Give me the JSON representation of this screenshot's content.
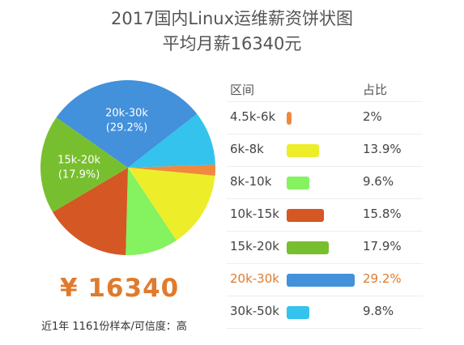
{
  "titles": {
    "line1": "2017国内Linux运维薪资饼状图",
    "line2": "平均月薪16340元"
  },
  "summary": {
    "salary": "¥ 16340",
    "footnote": "近1年 1161份样本/可信度：高"
  },
  "legend_header": {
    "range": "区间",
    "share": "占比"
  },
  "highlight_color": "#e07a2c",
  "chart_data": {
    "type": "pie",
    "title": "2017国内Linux运维薪资饼状图",
    "subtitle": "平均月薪16340元",
    "categories": [
      "4.5k-6k",
      "6k-8k",
      "8k-10k",
      "10k-15k",
      "15k-20k",
      "20k-30k",
      "30k-50k"
    ],
    "values": [
      2,
      13.9,
      9.6,
      15.8,
      17.9,
      29.2,
      9.8
    ],
    "value_labels": [
      "2%",
      "13.9%",
      "9.6%",
      "15.8%",
      "17.9%",
      "29.2%",
      "9.8%"
    ],
    "colors": [
      "#f0883e",
      "#eded2a",
      "#85f25f",
      "#d45724",
      "#78bf2f",
      "#4390db",
      "#33c3ed"
    ],
    "highlighted": "20k-30k",
    "slice_labels_shown": [
      "20k-30k",
      "15k-20k"
    ],
    "legend": "right"
  }
}
